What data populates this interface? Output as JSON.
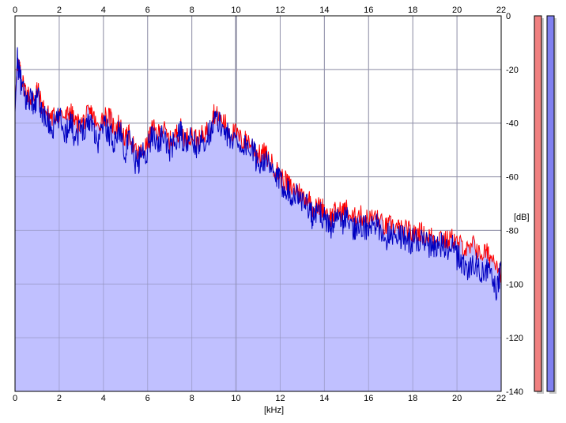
{
  "chart_data": {
    "type": "area",
    "xlabel": "[kHz]",
    "ylabel": "[dB]",
    "xlim": [
      0,
      22
    ],
    "ylim": [
      -140,
      0
    ],
    "x_ticks": [
      "0",
      "2",
      "4",
      "6",
      "8",
      "10",
      "12",
      "14",
      "16",
      "18",
      "20",
      "22"
    ],
    "y_ticks": [
      "0",
      "-20",
      "-40",
      "-60",
      "-80",
      "-100",
      "-120",
      "-140"
    ],
    "grid": true,
    "colors": {
      "background": "#ffffff",
      "fill": "#c0c0ff",
      "grid": "#a0a0a0",
      "grid_major": "#707070",
      "channel_1": "#ff0000",
      "channel_2": "#0000c0",
      "meter_1_fill": "#f08080",
      "meter_2_fill": "#8080f0"
    },
    "series": [
      {
        "x": [
          0,
          0.1,
          0.2,
          0.3,
          0.5,
          0.7,
          0.9,
          1.0,
          1.2,
          1.5,
          1.7,
          2.0,
          2.3,
          2.5,
          2.7,
          3.0,
          3.3,
          3.5,
          3.7,
          4.0,
          4.3,
          4.5,
          4.7,
          5.0,
          5.2,
          5.5,
          5.7,
          6.0,
          6.2,
          6.5,
          6.7,
          7.0,
          7.3,
          7.5,
          7.7,
          8.0,
          8.3,
          8.5,
          8.8,
          9.0,
          9.2,
          9.5,
          9.7,
          10.0,
          10.3,
          10.5,
          10.8,
          11.0,
          11.3,
          11.5,
          11.8,
          12.0,
          12.3,
          12.5,
          12.8,
          13.0,
          13.3,
          13.5,
          13.8,
          14.0,
          14.3,
          14.5,
          14.8,
          15.0,
          15.3,
          15.5,
          15.8,
          16.0,
          16.3,
          16.5,
          16.8,
          17.0,
          17.3,
          17.5,
          17.8,
          18.0,
          18.3,
          18.5,
          18.8,
          19.0,
          19.3,
          19.5,
          19.8,
          20.0,
          20.3,
          20.5,
          20.8,
          21.0,
          21.3,
          21.5,
          21.8,
          22.0
        ],
        "values": [
          -35,
          -17,
          -20,
          -24,
          -28,
          -31,
          -30,
          -27,
          -33,
          -37,
          -38,
          -36,
          -38,
          -35,
          -40,
          -40,
          -37,
          -36,
          -42,
          -37,
          -38,
          -42,
          -40,
          -46,
          -44,
          -52,
          -51,
          -48,
          -42,
          -44,
          -42,
          -47,
          -44,
          -42,
          -46,
          -44,
          -47,
          -44,
          -42,
          -36,
          -38,
          -40,
          -43,
          -44,
          -47,
          -46,
          -49,
          -52,
          -51,
          -54,
          -57,
          -60,
          -62,
          -64,
          -65,
          -67,
          -68,
          -72,
          -71,
          -72,
          -75,
          -73,
          -73,
          -72,
          -76,
          -74,
          -75,
          -76,
          -75,
          -77,
          -79,
          -78,
          -79,
          -80,
          -80,
          -82,
          -80,
          -82,
          -82,
          -83,
          -82,
          -84,
          -83,
          -85,
          -86,
          -88,
          -85,
          -89,
          -88,
          -90,
          -91,
          -96
        ]
      },
      {
        "x": [
          0,
          0.1,
          0.2,
          0.3,
          0.5,
          0.7,
          0.9,
          1.0,
          1.2,
          1.5,
          1.7,
          2.0,
          2.3,
          2.5,
          2.7,
          3.0,
          3.3,
          3.5,
          3.7,
          4.0,
          4.3,
          4.5,
          4.7,
          5.0,
          5.2,
          5.5,
          5.7,
          6.0,
          6.2,
          6.5,
          6.7,
          7.0,
          7.3,
          7.5,
          7.7,
          8.0,
          8.3,
          8.5,
          8.8,
          9.0,
          9.2,
          9.5,
          9.7,
          10.0,
          10.3,
          10.5,
          10.8,
          11.0,
          11.3,
          11.5,
          11.8,
          12.0,
          12.3,
          12.5,
          12.8,
          13.0,
          13.3,
          13.5,
          13.8,
          14.0,
          14.3,
          14.5,
          14.8,
          15.0,
          15.3,
          15.5,
          15.8,
          16.0,
          16.3,
          16.5,
          16.8,
          17.0,
          17.3,
          17.5,
          17.8,
          18.0,
          18.3,
          18.5,
          18.8,
          19.0,
          19.3,
          19.5,
          19.8,
          20.0,
          20.3,
          20.5,
          20.8,
          21.0,
          21.3,
          21.5,
          21.8,
          22.0
        ],
        "values": [
          -36,
          -16,
          -22,
          -26,
          -32,
          -30,
          -34,
          -30,
          -35,
          -40,
          -42,
          -38,
          -44,
          -38,
          -45,
          -42,
          -40,
          -38,
          -48,
          -40,
          -44,
          -47,
          -42,
          -50,
          -46,
          -56,
          -52,
          -50,
          -44,
          -47,
          -45,
          -50,
          -46,
          -44,
          -48,
          -46,
          -50,
          -46,
          -44,
          -38,
          -40,
          -42,
          -46,
          -46,
          -49,
          -48,
          -51,
          -55,
          -53,
          -57,
          -60,
          -62,
          -64,
          -66,
          -67,
          -69,
          -71,
          -76,
          -73,
          -76,
          -78,
          -76,
          -77,
          -75,
          -80,
          -77,
          -79,
          -80,
          -78,
          -80,
          -83,
          -80,
          -82,
          -82,
          -84,
          -84,
          -83,
          -85,
          -86,
          -86,
          -85,
          -88,
          -86,
          -90,
          -92,
          -95,
          -92,
          -95,
          -94,
          -97,
          -102,
          -95
        ]
      }
    ],
    "level_meters": [
      {
        "value": -140
      },
      {
        "value": -140
      }
    ]
  }
}
